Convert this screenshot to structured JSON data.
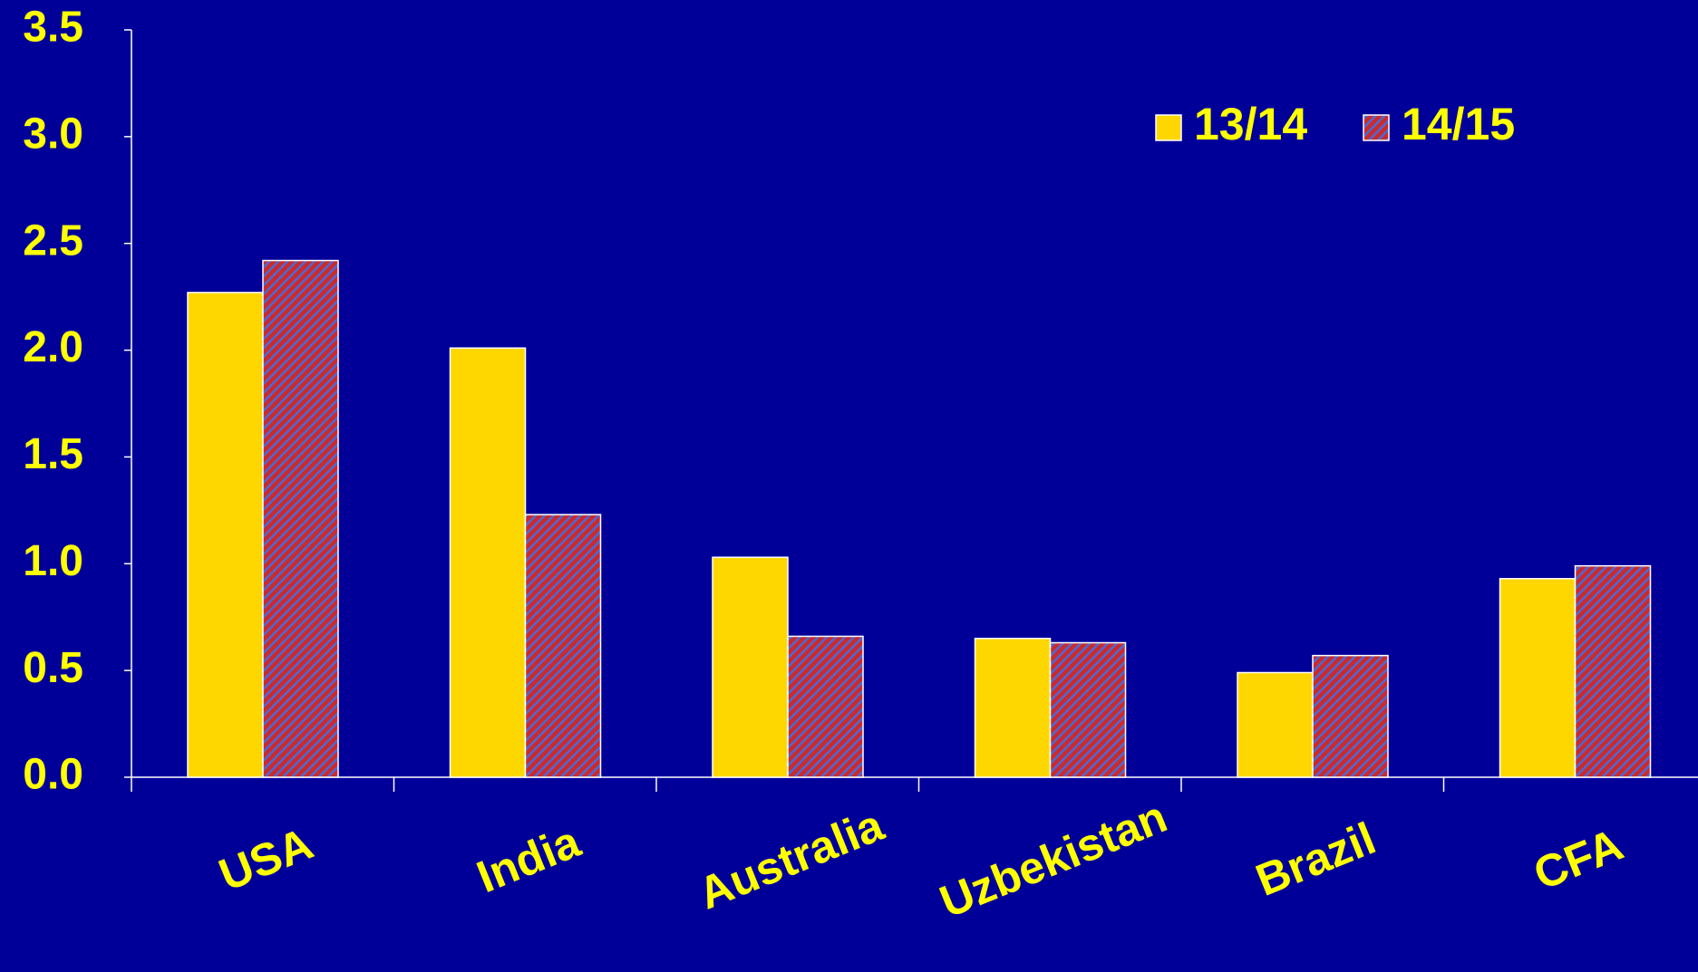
{
  "chart_data": {
    "type": "bar",
    "categories": [
      "USA",
      "India",
      "Australia",
      "Uzbekistan",
      "Brazil",
      "CFA"
    ],
    "series": [
      {
        "name": "13/14",
        "color": "#ffd700",
        "values": [
          2.27,
          2.01,
          1.03,
          0.65,
          0.49,
          0.93
        ]
      },
      {
        "name": "14/15",
        "color": "#cc2a2a",
        "hatch": true,
        "values": [
          2.42,
          1.23,
          0.66,
          0.63,
          0.57,
          0.99
        ]
      }
    ],
    "ylim": [
      0,
      3.5
    ],
    "yticks": [
      {
        "value": 0,
        "label": "0.0"
      },
      0.5,
      {
        "value": 1,
        "label": "1.0"
      },
      1.5,
      {
        "value": 2,
        "label": "2.0"
      },
      2.5,
      {
        "value": 3,
        "label": "3.0"
      },
      3.5
    ],
    "grid": false,
    "legend": "top-right"
  }
}
